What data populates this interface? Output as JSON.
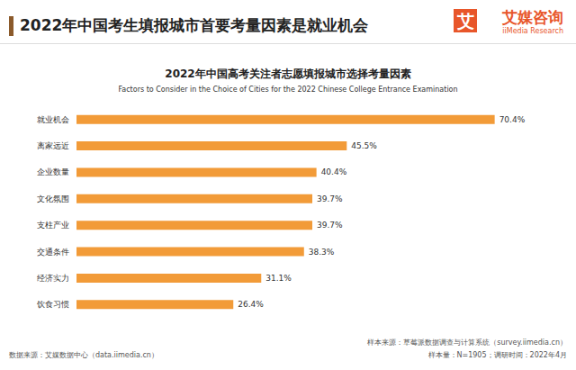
{
  "chart_data": {
    "type": "bar",
    "orientation": "horizontal",
    "title": "2022年中国考生填报城市首要考量因素是就业机会",
    "subtitle": "2022年中国高考关注者志愿填报城市选择考量因素",
    "annotations": [
      "Factors to Consider in the Choice of Cities for the 2022 Chinese College Entrance Examination",
      "艾",
      "艾媒咨询",
      "iiMedia Research",
      "数据来源：艾媒数据中心（data.iimedia.cn）",
      "样本来源：草莓派数据调查与计算系统（survey.iimedia.cn）",
      "样本量：N=1905；调研时间：2022年4月"
    ],
    "categories": [
      "就业机会",
      "离家远近",
      "企业数量",
      "文化氛围",
      "支柱产业",
      "交通条件",
      "经济实力",
      "饮食习惯"
    ],
    "values": [
      70.4,
      45.5,
      40.4,
      39.7,
      39.7,
      38.3,
      31.1,
      26.4
    ],
    "value_labels": [
      "70.4%",
      "45.5%",
      "40.4%",
      "39.7%",
      "39.7%",
      "38.3%",
      "31.1%",
      "26.4%"
    ],
    "color": "#f29b38",
    "xlim": [
      0,
      75
    ],
    "data_labels": true,
    "tick_labels": "y",
    "grid": false
  }
}
